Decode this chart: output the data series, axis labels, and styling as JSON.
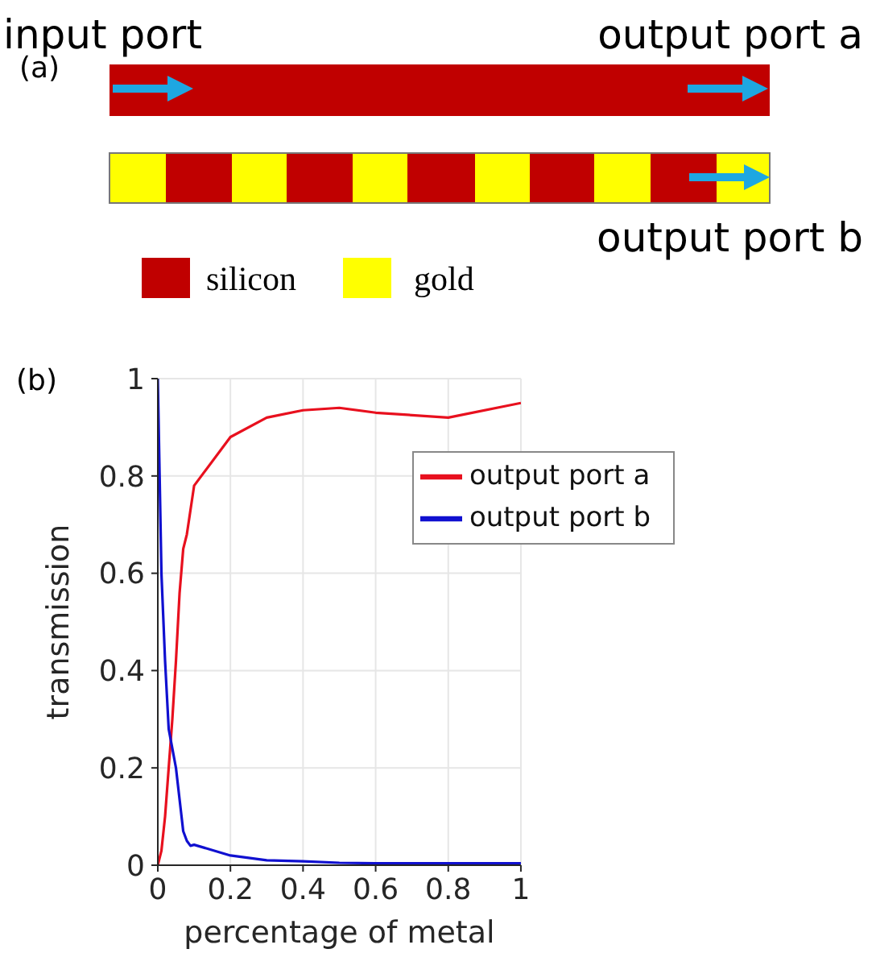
{
  "chart_data": {
    "type": "line",
    "xlabel": "percentage of metal",
    "ylabel": "transmission",
    "annotations": [
      "(a)",
      "input port",
      "output port a",
      "output port b",
      "silicon",
      "gold",
      "(b)"
    ],
    "xlim": [
      0,
      1
    ],
    "xticks": [
      0,
      0.2,
      0.4,
      0.6,
      0.8,
      1
    ],
    "ylim": [
      0,
      1
    ],
    "yticks": [
      0,
      0.2,
      0.4,
      0.6,
      0.8,
      1
    ],
    "grid": true,
    "legend": "top right",
    "marker": "none",
    "line_style": "solid",
    "series": [
      {
        "name": "output port a",
        "color": "#e8101e",
        "x": [
          0,
          0.01,
          0.02,
          0.03,
          0.04,
          0.05,
          0.06,
          0.07,
          0.08,
          0.1,
          0.2,
          0.3,
          0.4,
          0.5,
          0.6,
          0.8,
          1
        ],
        "values": [
          0,
          0.03,
          0.1,
          0.2,
          0.3,
          0.42,
          0.56,
          0.65,
          0.68,
          0.78,
          0.88,
          0.92,
          0.935,
          0.94,
          0.93,
          0.92,
          0.95
        ]
      },
      {
        "name": "output port b",
        "color": "#1010d0",
        "x": [
          0,
          0.005,
          0.01,
          0.02,
          0.03,
          0.05,
          0.07,
          0.08,
          0.09,
          0.1,
          0.2,
          0.3,
          0.4,
          0.5,
          0.6,
          0.8,
          1
        ],
        "values": [
          1,
          0.8,
          0.6,
          0.42,
          0.28,
          0.2,
          0.07,
          0.05,
          0.04,
          0.042,
          0.02,
          0.01,
          0.008,
          0.005,
          0.004,
          0.004,
          0.004
        ]
      }
    ]
  }
}
